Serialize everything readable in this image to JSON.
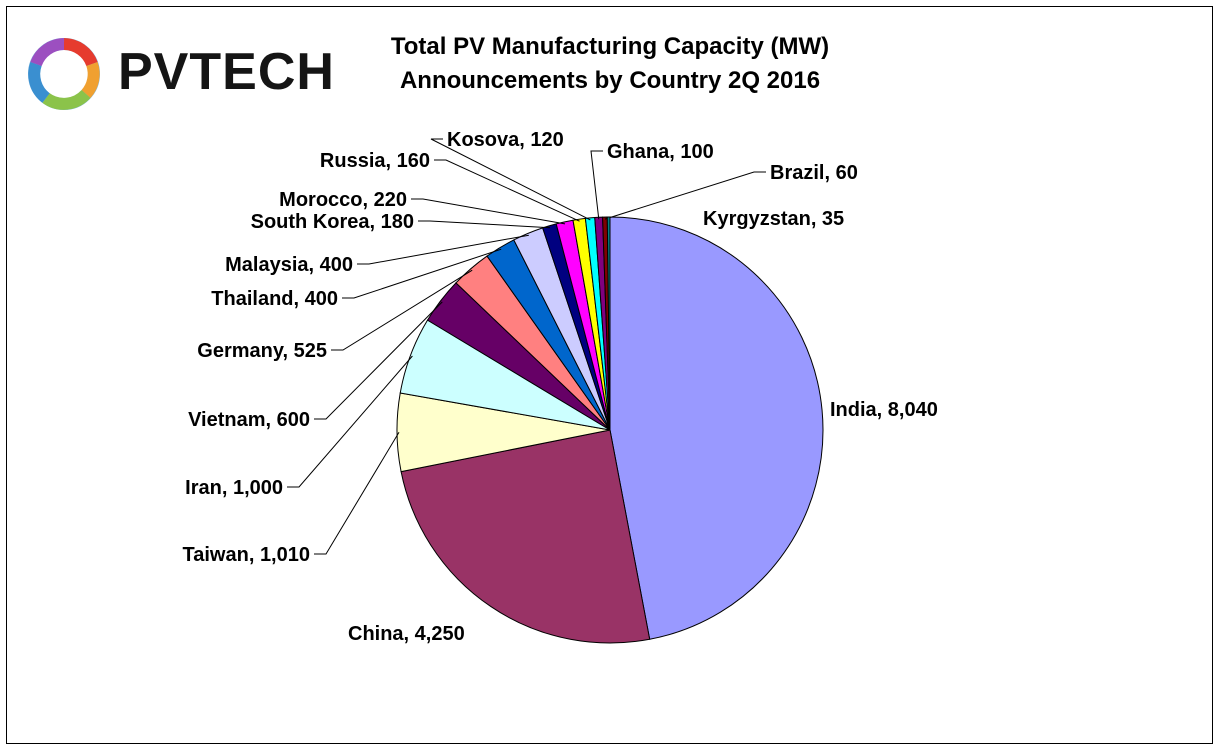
{
  "logo": {
    "text": "PVTECH"
  },
  "chart_data": {
    "type": "pie",
    "title": "Total PV Manufacturing Capacity (MW)",
    "subtitle": "Announcements by Country 2Q 2016",
    "slices": [
      {
        "label": "India",
        "value": 8040,
        "display": "India, 8,040",
        "color": "#9999FF"
      },
      {
        "label": "China",
        "value": 4250,
        "display": "China, 4,250",
        "color": "#993366"
      },
      {
        "label": "Taiwan",
        "value": 1010,
        "display": "Taiwan, 1,010",
        "color": "#FFFFCC"
      },
      {
        "label": "Iran",
        "value": 1000,
        "display": "Iran, 1,000",
        "color": "#CCFFFF"
      },
      {
        "label": "Vietnam",
        "value": 600,
        "display": "Vietnam, 600",
        "color": "#660066"
      },
      {
        "label": "Germany",
        "value": 525,
        "display": "Germany, 525",
        "color": "#FF8080"
      },
      {
        "label": "Thailand",
        "value": 400,
        "display": "Thailand, 400",
        "color": "#0066CC"
      },
      {
        "label": "Malaysia",
        "value": 400,
        "display": "Malaysia, 400",
        "color": "#CCCCFF"
      },
      {
        "label": "South Korea",
        "value": 180,
        "display": "South Korea, 180",
        "color": "#000080"
      },
      {
        "label": "Morocco",
        "value": 220,
        "display": "Morocco, 220",
        "color": "#FF00FF"
      },
      {
        "label": "Russia",
        "value": 160,
        "display": "Russia, 160",
        "color": "#FFFF00"
      },
      {
        "label": "Kosova",
        "value": 120,
        "display": "Kosova, 120",
        "color": "#00FFFF"
      },
      {
        "label": "Ghana",
        "value": 100,
        "display": "Ghana, 100",
        "color": "#800080"
      },
      {
        "label": "Brazil",
        "value": 60,
        "display": "Brazil, 60",
        "color": "#800000"
      },
      {
        "label": "Kyrgyzstan",
        "value": 35,
        "display": "Kyrgyzstan, 35",
        "color": "#008080"
      }
    ]
  }
}
